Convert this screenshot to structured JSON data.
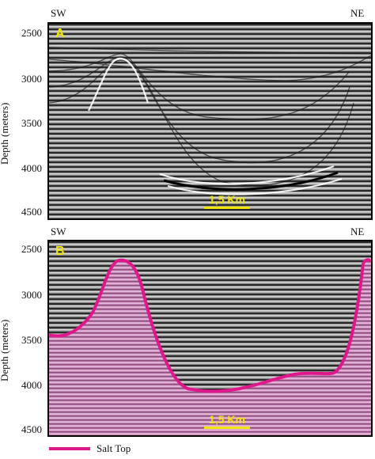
{
  "panels": [
    {
      "label": "A",
      "direction_left": "SW",
      "direction_right": "NE",
      "ylabel": "Depth (meters)",
      "ticks": [
        "2500",
        "3000",
        "3500",
        "4000",
        "4500"
      ],
      "scale_label": "1,5 Km",
      "salt_overlay": false
    },
    {
      "label": "B",
      "direction_left": "SW",
      "direction_right": "NE",
      "ylabel": "Depth (meters)",
      "ticks": [
        "2500",
        "3000",
        "3500",
        "4000",
        "4500"
      ],
      "scale_label": "1,5 Km",
      "salt_overlay": true
    }
  ],
  "legend": {
    "label": "Salt Top",
    "color": "#e0168c"
  },
  "colors": {
    "salt_fill": "#d58fc4",
    "accent": "#f2e600",
    "seismic_bg": "#8c8c8c"
  }
}
